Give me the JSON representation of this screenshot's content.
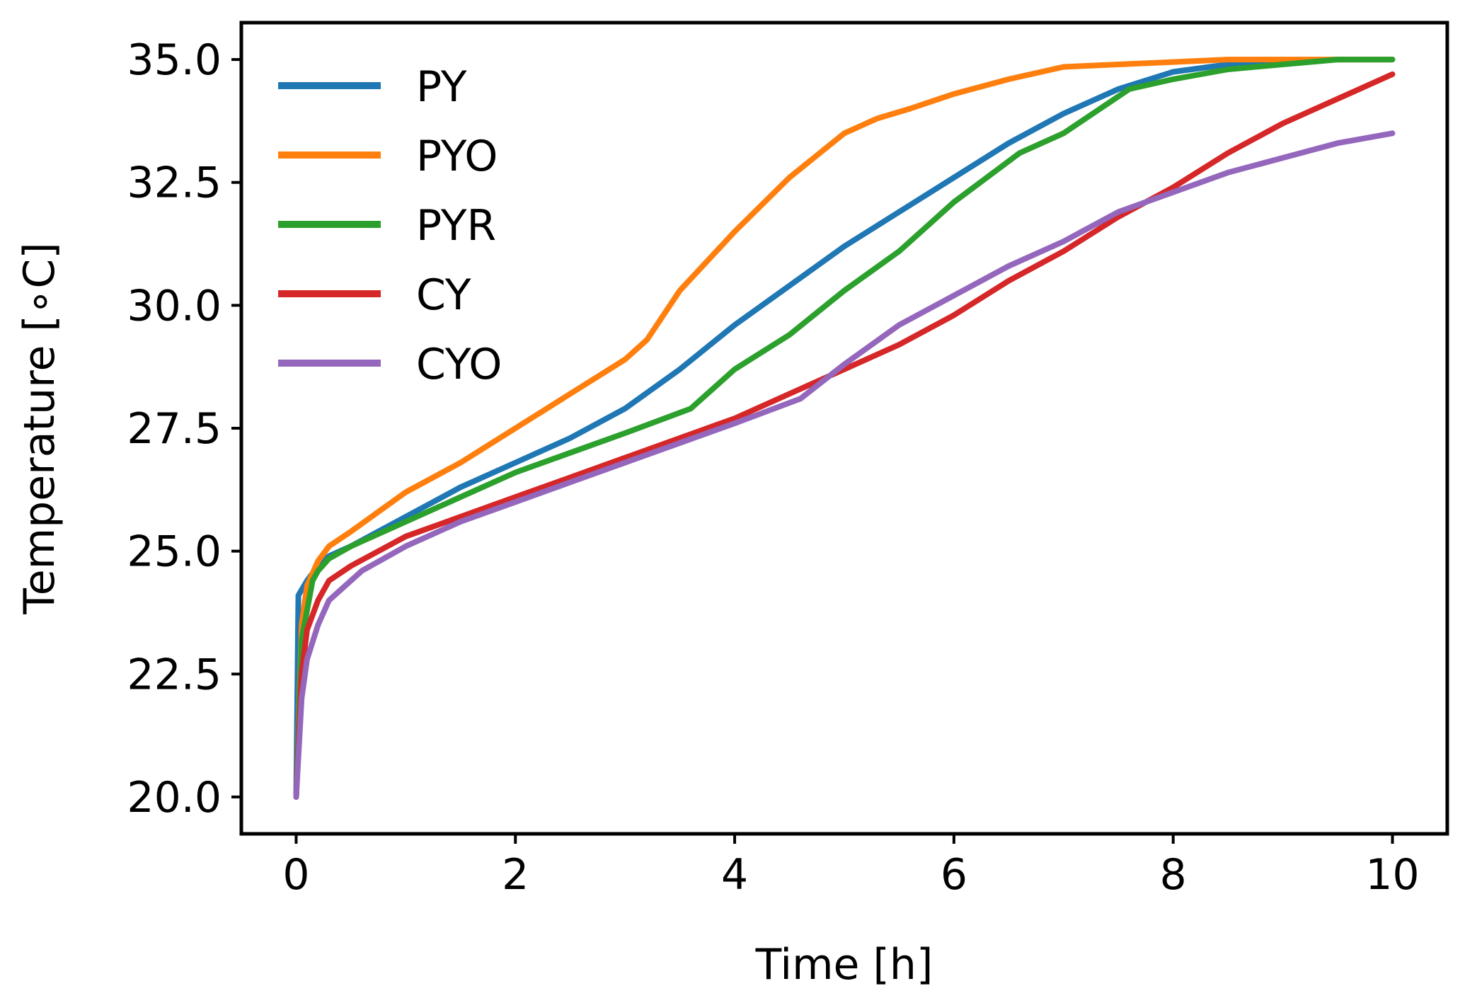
{
  "chart_data": {
    "type": "line",
    "title": "",
    "xlabel": "Time [h]",
    "ylabel": "Temperature [∘C]",
    "xlim": [
      -0.5,
      10.5
    ],
    "ylim": [
      19.25,
      35.75
    ],
    "xticks": [
      0,
      2,
      4,
      6,
      8,
      10
    ],
    "xtick_labels": [
      "0",
      "2",
      "4",
      "6",
      "8",
      "10"
    ],
    "yticks": [
      20.0,
      22.5,
      25.0,
      27.5,
      30.0,
      32.5,
      35.0
    ],
    "ytick_labels": [
      "20.0",
      "22.5",
      "25.0",
      "27.5",
      "30.0",
      "32.5",
      "35.0"
    ],
    "grid": false,
    "legend_position": "top-left",
    "series": [
      {
        "name": "PY",
        "color": "#1f77b4",
        "x": [
          0,
          0.02,
          0.1,
          0.2,
          0.3,
          0.5,
          1,
          1.5,
          2,
          2.5,
          3,
          3.5,
          4,
          4.5,
          5,
          5.5,
          6,
          6.5,
          7,
          7.5,
          8,
          8.5,
          9,
          9.5,
          10
        ],
        "y": [
          20.0,
          24.1,
          24.4,
          24.7,
          24.9,
          25.1,
          25.7,
          26.3,
          26.8,
          27.3,
          27.9,
          28.7,
          29.6,
          30.4,
          31.2,
          31.9,
          32.6,
          33.3,
          33.9,
          34.4,
          34.75,
          34.9,
          34.97,
          35.0,
          35.0
        ]
      },
      {
        "name": "PYO",
        "color": "#ff7f0e",
        "x": [
          0,
          0.05,
          0.1,
          0.2,
          0.3,
          0.5,
          1,
          1.5,
          2,
          2.5,
          3,
          3.2,
          3.5,
          4,
          4.5,
          5,
          5.3,
          5.6,
          6,
          6.5,
          7,
          7.5,
          8,
          8.5,
          9,
          9.5,
          10
        ],
        "y": [
          20.0,
          23.5,
          24.3,
          24.8,
          25.1,
          25.4,
          26.2,
          26.8,
          27.5,
          28.2,
          28.9,
          29.3,
          30.3,
          31.5,
          32.6,
          33.5,
          33.8,
          34.0,
          34.3,
          34.6,
          34.85,
          34.9,
          34.95,
          35.0,
          35.0,
          35.0,
          35.0
        ]
      },
      {
        "name": "PYR",
        "color": "#2ca02c",
        "x": [
          0,
          0.05,
          0.15,
          0.2,
          0.3,
          0.5,
          1,
          1.5,
          2,
          2.5,
          3,
          3.6,
          4,
          4.5,
          5,
          5.5,
          6,
          6.6,
          7,
          7.6,
          8,
          8.5,
          9,
          9.5,
          10
        ],
        "y": [
          20.0,
          23.2,
          24.4,
          24.6,
          24.85,
          25.1,
          25.6,
          26.1,
          26.6,
          27.0,
          27.4,
          27.9,
          28.7,
          29.4,
          30.3,
          31.1,
          32.1,
          33.1,
          33.5,
          34.4,
          34.6,
          34.8,
          34.9,
          35.0,
          35.0
        ]
      },
      {
        "name": "CY",
        "color": "#d62728",
        "x": [
          0,
          0.05,
          0.1,
          0.2,
          0.3,
          0.5,
          1,
          1.5,
          2,
          2.5,
          3,
          3.5,
          4,
          4.5,
          5,
          5.5,
          6,
          6.5,
          7,
          7.5,
          8,
          8.5,
          9,
          9.3,
          9.6,
          10
        ],
        "y": [
          20.0,
          22.5,
          23.4,
          24.0,
          24.4,
          24.7,
          25.3,
          25.7,
          26.1,
          26.5,
          26.9,
          27.3,
          27.7,
          28.2,
          28.7,
          29.2,
          29.8,
          30.5,
          31.1,
          31.8,
          32.4,
          33.1,
          33.7,
          34.0,
          34.3,
          34.7
        ]
      },
      {
        "name": "CYO",
        "color": "#9467bd",
        "x": [
          0,
          0.05,
          0.1,
          0.2,
          0.3,
          0.6,
          1,
          1.5,
          2,
          2.5,
          3,
          3.5,
          4,
          4.6,
          5,
          5.5,
          6,
          6.5,
          7,
          7.5,
          8,
          8.5,
          9,
          9.5,
          10
        ],
        "y": [
          20.0,
          22.0,
          22.8,
          23.5,
          24.0,
          24.6,
          25.1,
          25.6,
          26.0,
          26.4,
          26.8,
          27.2,
          27.6,
          28.1,
          28.8,
          29.6,
          30.2,
          30.8,
          31.3,
          31.9,
          32.3,
          32.7,
          33.0,
          33.3,
          33.5
        ]
      }
    ]
  }
}
